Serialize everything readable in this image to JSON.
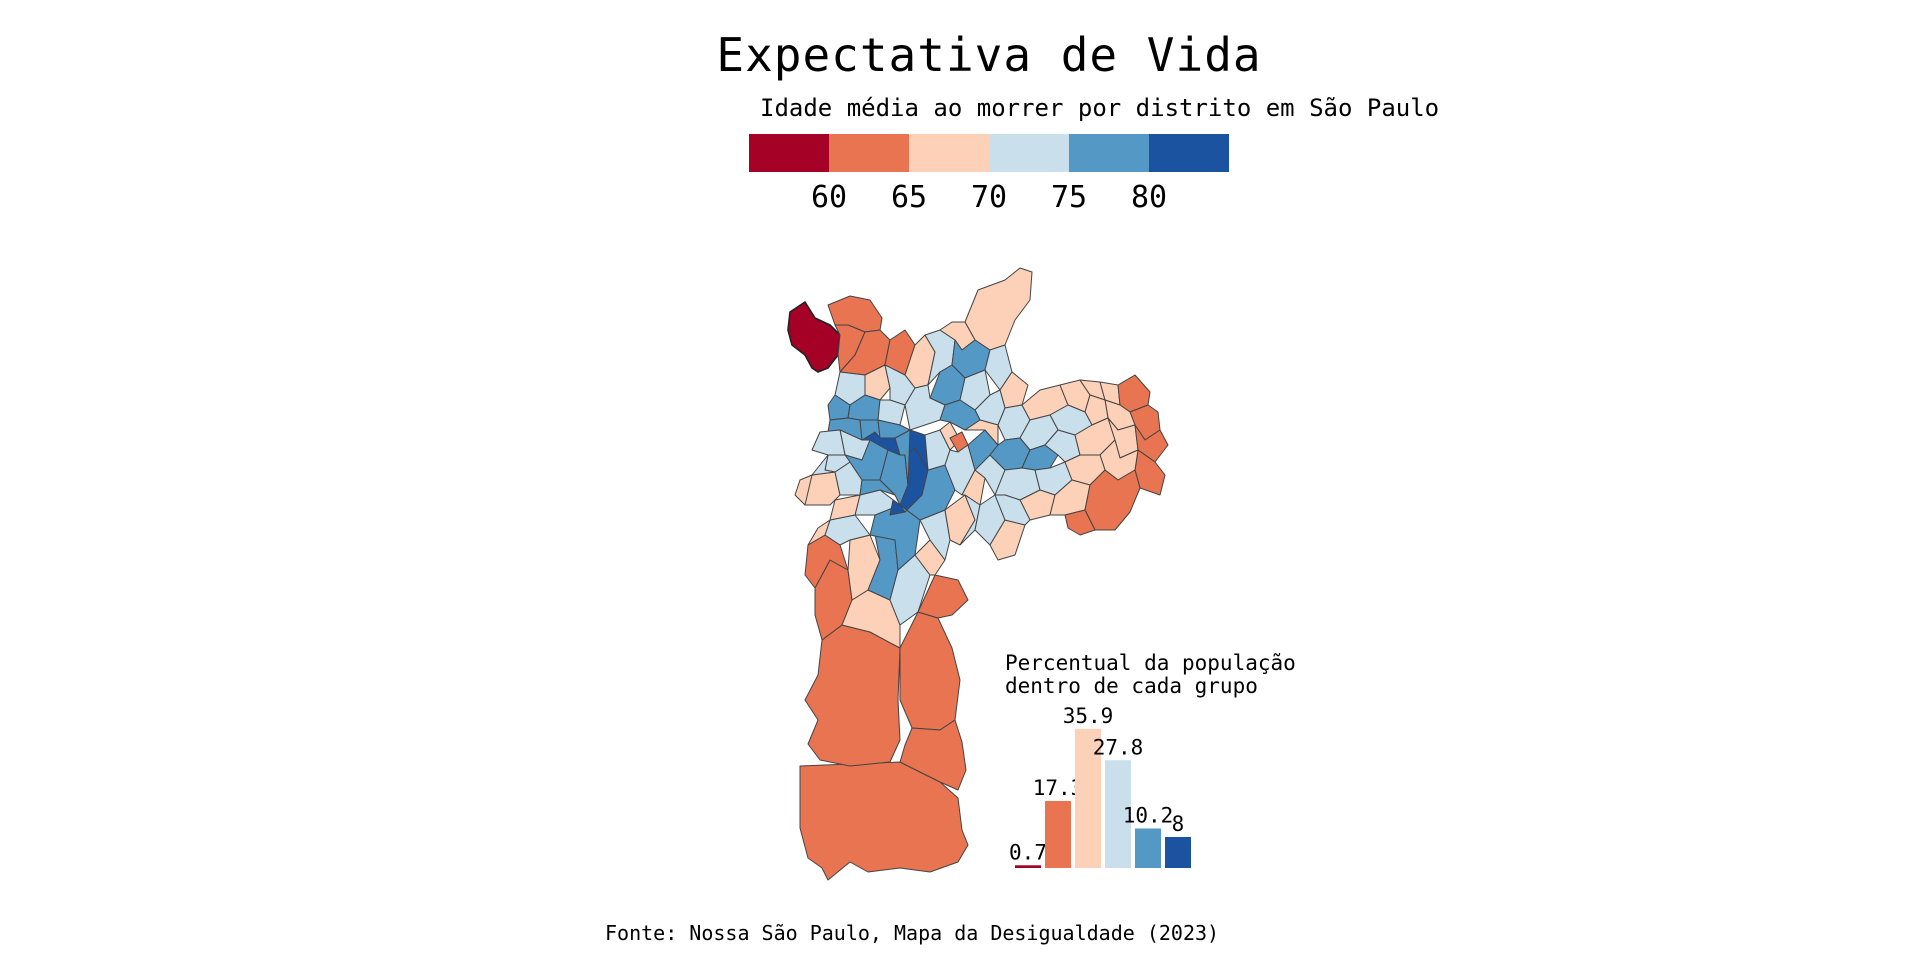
{
  "title": "Expectativa de Vida",
  "subtitle": "Idade média ao morrer por distrito em São Paulo",
  "legend": {
    "colors": [
      "#a50026",
      "#e87452",
      "#fdd0b8",
      "#c9dfec",
      "#5498c6",
      "#1b53a0"
    ],
    "ticks": [
      "60",
      "65",
      "70",
      "75",
      "80"
    ]
  },
  "map": {
    "border_color": "#444444",
    "highlighted_district_color": "#a50026"
  },
  "inset": {
    "title": "Percentual da população\ndentro de cada grupo"
  },
  "chart_data": {
    "type": "bar",
    "title": "Percentual da população dentro de cada grupo",
    "categories": [
      "< 60",
      "60–65",
      "65–70",
      "70–75",
      "75–80",
      "> 80"
    ],
    "values": [
      0.7,
      17.3,
      35.9,
      27.8,
      10.2,
      8
    ],
    "value_labels": [
      "0.7",
      "17.3",
      "35.9",
      "27.8",
      "10.2",
      "8"
    ],
    "colors": [
      "#a50026",
      "#e87452",
      "#fdd0b8",
      "#c9dfec",
      "#5498c6",
      "#1b53a0"
    ],
    "ylim": [
      0,
      40
    ]
  },
  "source": "Fonte: Nossa São Paulo, Mapa da Desigualdade (2023)"
}
